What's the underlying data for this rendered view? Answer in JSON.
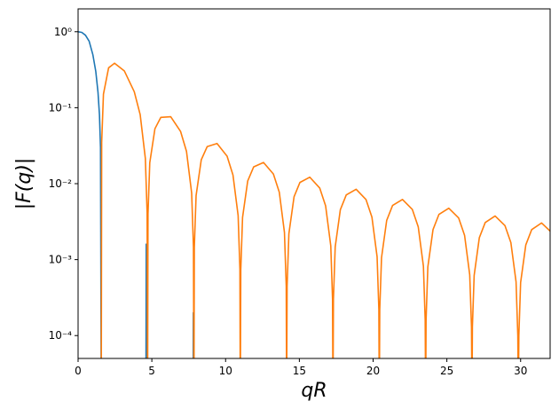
{
  "chart_data": {
    "type": "line",
    "xlabel": "qR",
    "ylabel": "|F(q)|",
    "log_y": true,
    "xlim": [
      0,
      32
    ],
    "ylim": [
      5e-05,
      2
    ],
    "xticks": [
      0,
      5,
      10,
      15,
      20,
      25,
      30
    ],
    "yticks": [
      {
        "value": 1,
        "label": "10⁰"
      },
      {
        "value": 0.1,
        "label": "10⁻¹"
      },
      {
        "value": 0.01,
        "label": "10⁻²"
      },
      {
        "value": 0.001,
        "label": "10⁻³"
      },
      {
        "value": 0.0001,
        "label": "10⁻⁴"
      }
    ],
    "series": [
      {
        "color": "#1f77b4",
        "x": [
          0,
          0.25,
          0.5,
          0.75,
          1.0,
          1.2,
          1.35,
          1.45,
          1.52,
          1.571,
          null,
          4.6,
          4.62,
          4.64,
          null,
          7.8,
          7.81,
          7.82
        ],
        "values": [
          1,
          0.98,
          0.9,
          0.75,
          0.5,
          0.3,
          0.16,
          0.08,
          0.03,
          0,
          null,
          0,
          0.0016,
          0,
          null,
          0,
          0.0002,
          0
        ]
      },
      {
        "color": "#ff7f0e",
        "x": [
          1.571,
          1.6,
          1.72,
          2.07,
          2.47,
          3.14,
          3.81,
          4.21,
          4.56,
          4.68,
          4.712,
          4.74,
          4.86,
          5.21,
          5.61,
          6.28,
          6.95,
          7.35,
          7.7,
          7.82,
          7.854,
          7.88,
          8.0,
          8.35,
          8.75,
          9.42,
          10.1,
          10.5,
          10.85,
          10.97,
          10.996,
          11.03,
          11.15,
          11.5,
          11.9,
          12.57,
          13.24,
          13.64,
          13.99,
          14.11,
          14.137,
          14.17,
          14.29,
          14.64,
          15.04,
          15.71,
          16.38,
          16.78,
          17.13,
          17.25,
          17.279,
          17.31,
          17.43,
          17.78,
          18.18,
          18.85,
          19.52,
          19.92,
          20.27,
          20.39,
          20.42,
          20.45,
          20.57,
          20.92,
          21.32,
          21.99,
          22.66,
          23.06,
          23.41,
          23.53,
          23.562,
          23.59,
          23.71,
          24.06,
          24.46,
          25.13,
          25.8,
          26.2,
          26.55,
          26.67,
          26.704,
          26.73,
          26.85,
          27.2,
          27.6,
          28.27,
          28.94,
          29.34,
          29.69,
          29.81,
          29.845,
          29.88,
          30.0,
          30.35,
          30.75,
          31.42,
          32.09
        ],
        "values": [
          0,
          0.035,
          0.151,
          0.335,
          0.385,
          0.304,
          0.162,
          0.081,
          0.0215,
          0.0041,
          0,
          0.004,
          0.0189,
          0.0529,
          0.0746,
          0.0761,
          0.0486,
          0.0266,
          0.0075,
          0.00147,
          0,
          0.00145,
          0.00698,
          0.0206,
          0.0307,
          0.0338,
          0.023,
          0.013,
          0.0038,
          0.00075,
          0,
          0.00074,
          0.0036,
          0.01087,
          0.0166,
          0.019,
          0.0134,
          0.00773,
          0.00228,
          0.00045,
          0,
          0.00045,
          0.00219,
          0.00671,
          0.01038,
          0.01216,
          0.00876,
          0.0051,
          0.00152,
          0.0003,
          0,
          0.0003,
          0.00147,
          0.00455,
          0.00711,
          0.00844,
          0.00617,
          0.00362,
          0.00109,
          0.00022,
          0,
          0.00022,
          0.00106,
          0.00328,
          0.00517,
          0.0062,
          0.00457,
          0.0027,
          0.00082,
          0.00016,
          0,
          0.00016,
          0.0008,
          0.00248,
          0.00393,
          0.00475,
          0.00353,
          0.00209,
          0.00063,
          0.00013,
          0,
          0.00013,
          0.00062,
          0.00194,
          0.00308,
          0.00375,
          0.0028,
          0.00167,
          0.00051,
          0.0001,
          0,
          0.0001,
          0.0005,
          0.00156,
          0.00248,
          0.00304,
          0.00228
        ]
      }
    ]
  }
}
